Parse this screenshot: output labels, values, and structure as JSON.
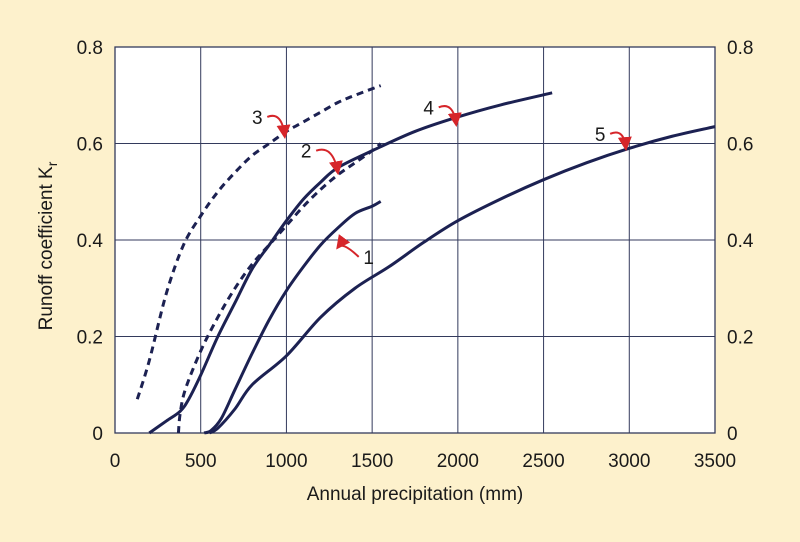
{
  "chart_data": {
    "type": "line",
    "title": "",
    "xlabel": "Annual precipitation (mm)",
    "ylabel": {
      "main": "Runoff coefficient K",
      "subscript": "r"
    },
    "xlim": [
      0,
      3500
    ],
    "ylim": [
      0,
      0.8
    ],
    "xticks": [
      "0",
      "500",
      "1000",
      "1500",
      "2000",
      "2500",
      "3000",
      "3500"
    ],
    "yticks": [
      "0",
      "0.2",
      "0.4",
      "0.6",
      "0.8"
    ],
    "grid": true,
    "right_axis": true,
    "legend": "none",
    "colors": {
      "background": "#fdf1cc",
      "plot_background": "#ffffff",
      "grid": "#333a5c",
      "curve": "#1c2152",
      "arrow": "#d6252a"
    },
    "series": [
      {
        "name": "1",
        "style": "solid",
        "points": [
          [
            520,
            0
          ],
          [
            560,
            0.005
          ],
          [
            620,
            0.03
          ],
          [
            700,
            0.09
          ],
          [
            800,
            0.165
          ],
          [
            900,
            0.235
          ],
          [
            1000,
            0.295
          ],
          [
            1100,
            0.345
          ],
          [
            1200,
            0.39
          ],
          [
            1300,
            0.425
          ],
          [
            1400,
            0.455
          ],
          [
            1500,
            0.47
          ],
          [
            1550,
            0.48
          ]
        ]
      },
      {
        "name": "2",
        "style": "dashed",
        "points": [
          [
            370,
            0
          ],
          [
            380,
            0.04
          ],
          [
            410,
            0.09
          ],
          [
            500,
            0.17
          ],
          [
            600,
            0.24
          ],
          [
            700,
            0.3
          ],
          [
            800,
            0.35
          ],
          [
            900,
            0.39
          ],
          [
            1000,
            0.43
          ],
          [
            1100,
            0.47
          ],
          [
            1200,
            0.505
          ],
          [
            1300,
            0.535
          ],
          [
            1400,
            0.56
          ],
          [
            1500,
            0.585
          ],
          [
            1550,
            0.6
          ]
        ]
      },
      {
        "name": "3",
        "style": "dashed",
        "points": [
          [
            130,
            0.07
          ],
          [
            200,
            0.15
          ],
          [
            300,
            0.29
          ],
          [
            400,
            0.39
          ],
          [
            500,
            0.45
          ],
          [
            600,
            0.5
          ],
          [
            700,
            0.54
          ],
          [
            800,
            0.575
          ],
          [
            900,
            0.6
          ],
          [
            1000,
            0.625
          ],
          [
            1100,
            0.645
          ],
          [
            1200,
            0.665
          ],
          [
            1300,
            0.685
          ],
          [
            1400,
            0.7
          ],
          [
            1550,
            0.72
          ]
        ]
      },
      {
        "name": "4",
        "style": "solid",
        "points": [
          [
            200,
            0
          ],
          [
            300,
            0.025
          ],
          [
            380,
            0.045
          ],
          [
            430,
            0.07
          ],
          [
            500,
            0.12
          ],
          [
            600,
            0.2
          ],
          [
            700,
            0.27
          ],
          [
            800,
            0.34
          ],
          [
            900,
            0.39
          ],
          [
            1000,
            0.44
          ],
          [
            1100,
            0.485
          ],
          [
            1200,
            0.52
          ],
          [
            1300,
            0.55
          ],
          [
            1500,
            0.585
          ],
          [
            1750,
            0.625
          ],
          [
            2000,
            0.655
          ],
          [
            2250,
            0.68
          ],
          [
            2550,
            0.705
          ]
        ]
      },
      {
        "name": "5",
        "style": "solid",
        "points": [
          [
            550,
            0
          ],
          [
            600,
            0.01
          ],
          [
            700,
            0.05
          ],
          [
            800,
            0.1
          ],
          [
            1000,
            0.16
          ],
          [
            1200,
            0.24
          ],
          [
            1400,
            0.3
          ],
          [
            1600,
            0.345
          ],
          [
            1800,
            0.395
          ],
          [
            2000,
            0.44
          ],
          [
            2250,
            0.485
          ],
          [
            2500,
            0.525
          ],
          [
            2750,
            0.56
          ],
          [
            3000,
            0.59
          ],
          [
            3250,
            0.615
          ],
          [
            3500,
            0.635
          ]
        ]
      }
    ],
    "annotations": [
      {
        "text": "1",
        "label_at": [
          1480,
          0.365
        ],
        "arrow_to": [
          1300,
          0.385
        ]
      },
      {
        "text": "2",
        "label_at": [
          1115,
          0.585
        ],
        "arrow_to": [
          1300,
          0.54
        ]
      },
      {
        "text": "3",
        "label_at": [
          830,
          0.655
        ],
        "arrow_to": [
          990,
          0.615
        ]
      },
      {
        "text": "4",
        "label_at": [
          1830,
          0.675
        ],
        "arrow_to": [
          1990,
          0.64
        ]
      },
      {
        "text": "5",
        "label_at": [
          2830,
          0.62
        ],
        "arrow_to": [
          2980,
          0.59
        ]
      }
    ]
  }
}
